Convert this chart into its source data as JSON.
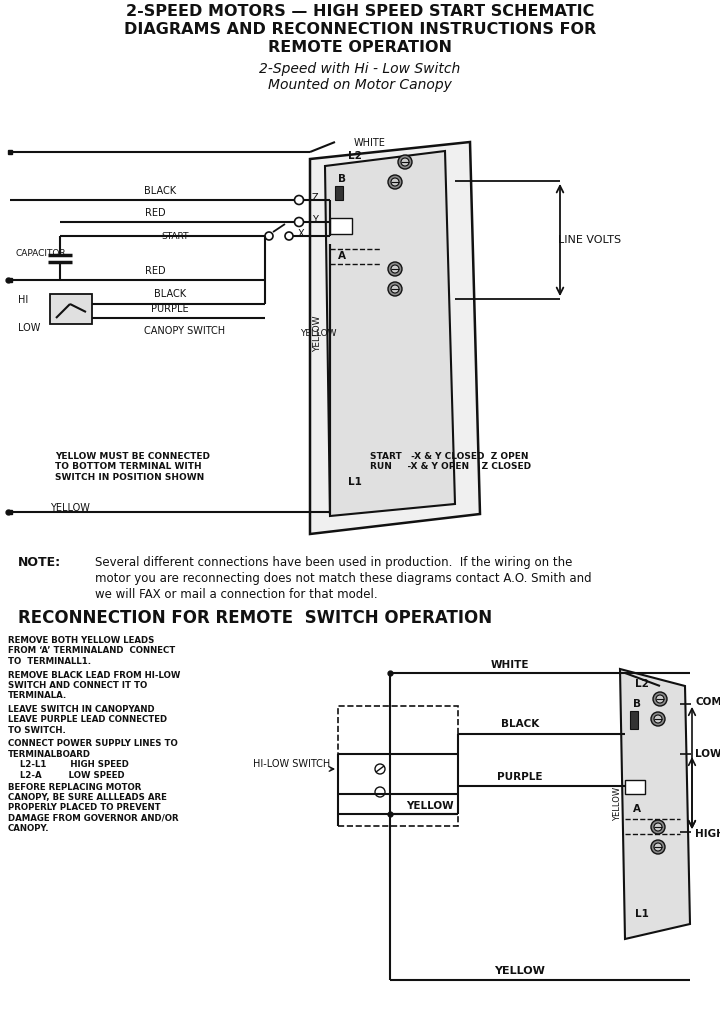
{
  "title_line1": "2-SPEED MOTORS — HIGH SPEED START SCHEMATIC",
  "title_line2": "DIAGRAMS AND RECONNECTION INSTRUCTIONS FOR",
  "title_line3": "REMOTE OPERATION",
  "subtitle_line1": "2-Speed with Hi - Low Switch",
  "subtitle_line2": "Mounted on Motor Canopy",
  "bg_color": "#ffffff",
  "fg_color": "#111111",
  "reconnection_title": "RECONNECTION FOR REMOTE  SWITCH OPERATION",
  "bottom_notes_left": "YELLOW MUST BE CONNECTED\nTO BOTTOM TERMINAL WITH\nSWITCH IN POSITION SHOWN",
  "bottom_notes_right": "START   -X & Y CLOSED  Z OPEN\nRUN     -X & Y OPEN    Z CLOSED",
  "note_text1": "Several different connections have been used in production.  If the wiring on the",
  "note_text2": "motor you are reconnecting does not match these diagrams contact A.O. Smith and",
  "note_text3": "we will FAX or mail a connection for that model.",
  "instr1": "REMOVE BOTH YELLOW LEADS\nFROM ‘A’ TERMINALAND  CONNECT\nTO  TERMINALL1.",
  "instr2": "REMOVE BLACK LEAD FROM HI-LOW\nSWITCH AND CONNECT IT TO\nTERMINALA.",
  "instr3": "LEAVE SWITCH IN CANOPYAND\nLEAVE PURPLE LEAD CONNECTED\nTO SWITCH.",
  "instr4": "CONNECT POWER SUPPLY LINES TO\nTERMINALBOARD\n    L2-L1        HIGH SPEED\n    L2-A         LOW SPEED",
  "instr5": "BEFORE REPLACING MOTOR\nCANOPY, BE SURE ALLLEADS ARE\nPROPERLY PLACED TO PREVENT\nDAMAGE FROM GOVERNOR AND/OR\nCANOPY."
}
